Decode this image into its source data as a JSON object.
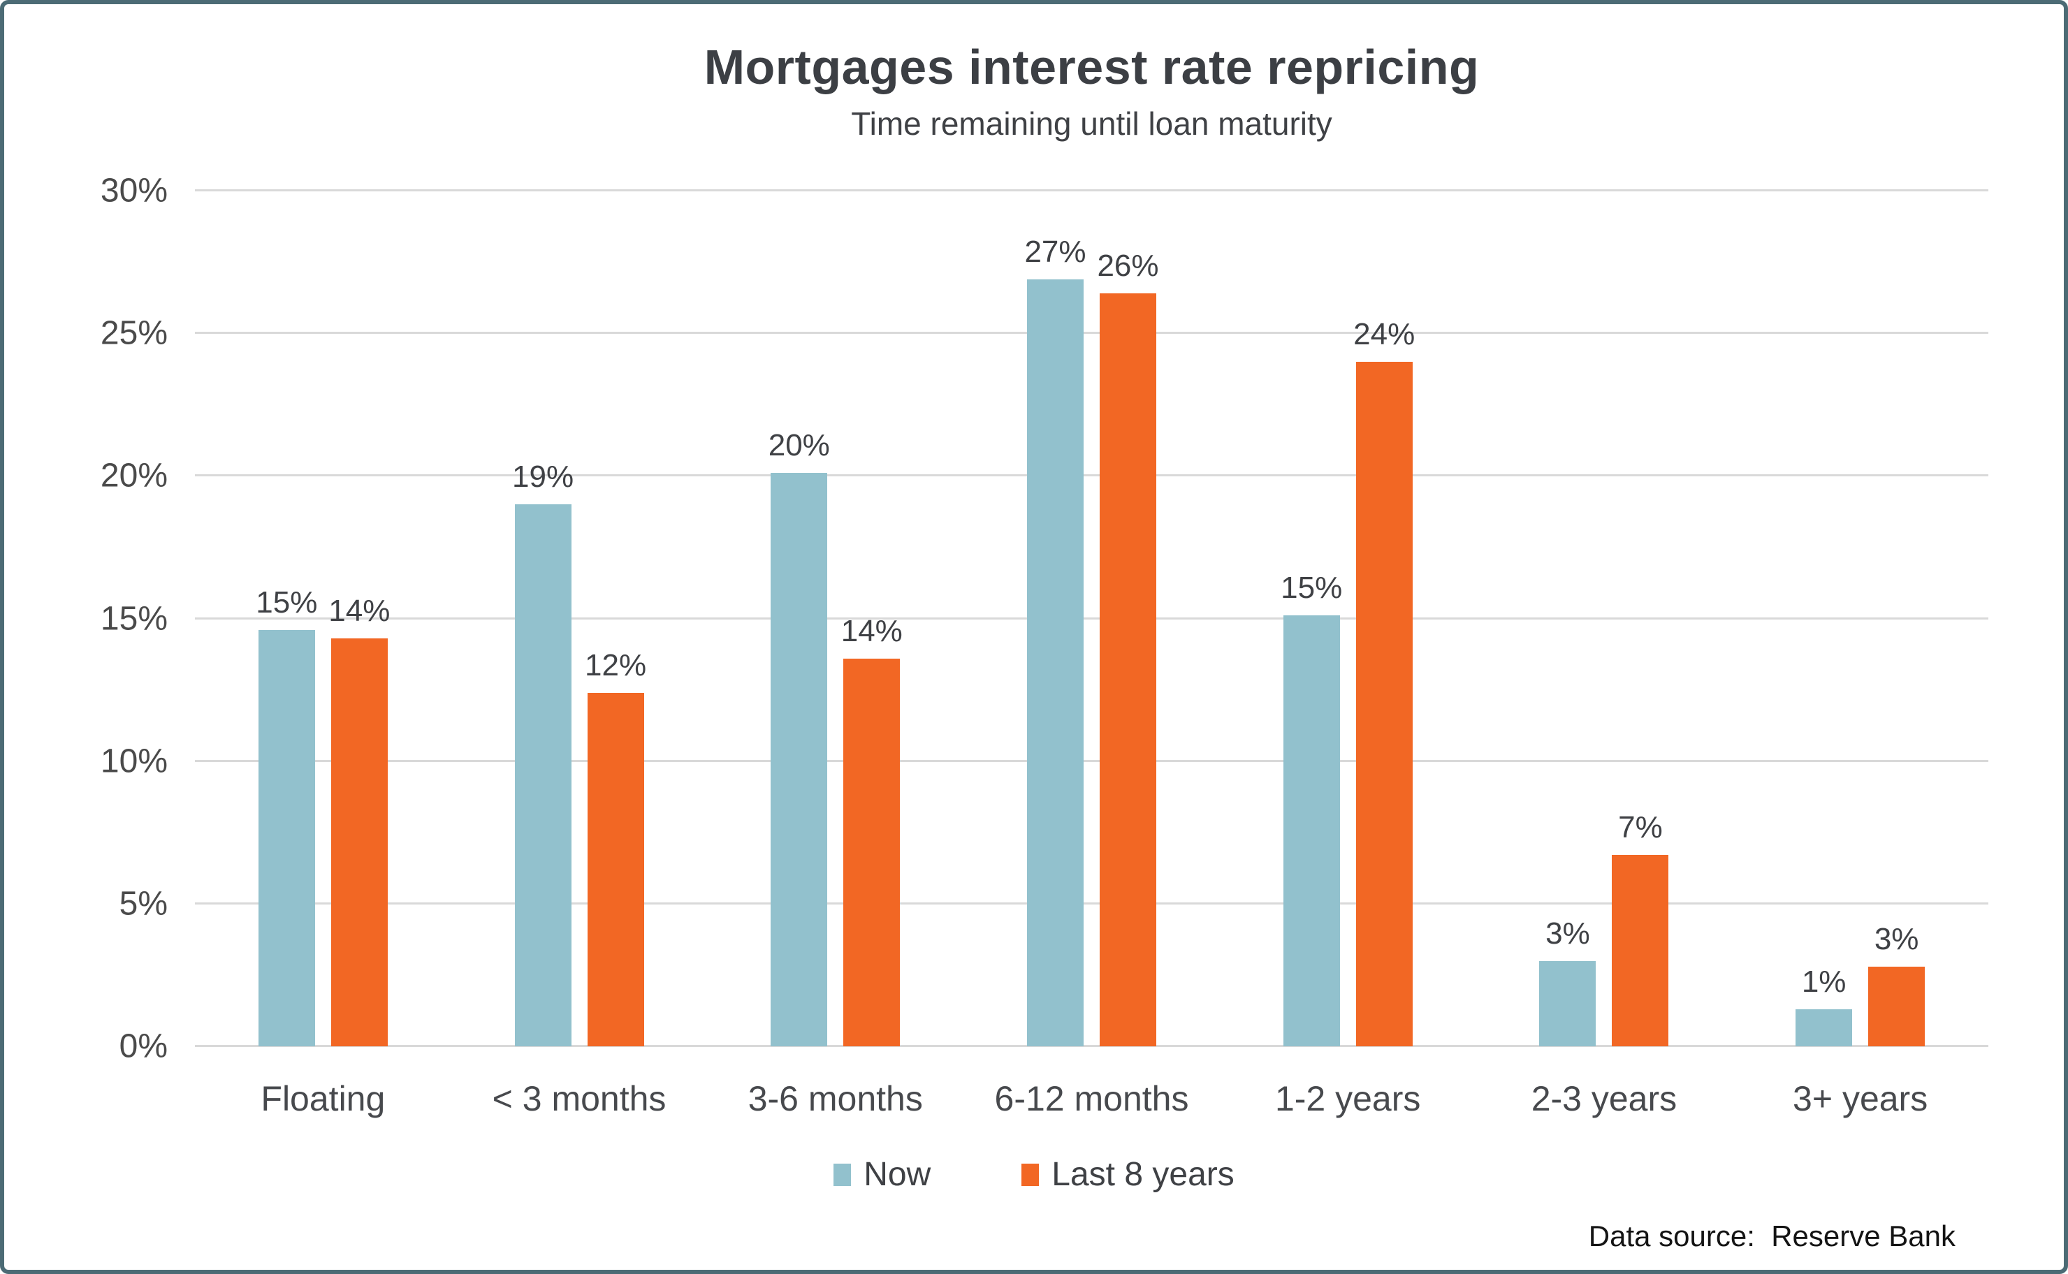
{
  "frame": {
    "border_color": "#4C6B75",
    "background": "#FFFFFF"
  },
  "header": {
    "title": "Mortgages interest rate repricing",
    "subtitle": "Time remaining until loan maturity"
  },
  "chart_data": {
    "type": "bar",
    "title": "Mortgages interest rate repricing",
    "subtitle": "Time remaining until loan maturity",
    "categories": [
      "Floating",
      "< 3 months",
      "3-6 months",
      "6-12 months",
      "1-2 years",
      "2-3 years",
      "3+ years"
    ],
    "series": [
      {
        "name": "Now",
        "color": "#92C1CD",
        "values": [
          15,
          19,
          20,
          27,
          15,
          3,
          1
        ],
        "values_precise": [
          14.6,
          19.0,
          20.1,
          26.9,
          15.1,
          3.0,
          1.3
        ],
        "labels": [
          "15%",
          "19%",
          "20%",
          "27%",
          "15%",
          "3%",
          "1%"
        ]
      },
      {
        "name": "Last 8 years",
        "color": "#F26724",
        "values": [
          14,
          12,
          14,
          26,
          24,
          7,
          3
        ],
        "values_precise": [
          14.3,
          12.4,
          13.6,
          26.4,
          24.0,
          6.7,
          2.8
        ],
        "labels": [
          "14%",
          "12%",
          "14%",
          "26%",
          "24%",
          "7%",
          "3%"
        ]
      }
    ],
    "y_axis": {
      "min": 0,
      "max": 30,
      "step": 5,
      "tick_labels": [
        "0%",
        "5%",
        "10%",
        "15%",
        "20%",
        "25%",
        "30%"
      ]
    },
    "xlabel": "",
    "ylabel": "",
    "grid": true,
    "legend": {
      "position": "bottom",
      "entries": [
        "Now",
        "Last 8 years"
      ]
    },
    "gridline_color": "#D9D9D9",
    "text_color": "#3F4145"
  },
  "footer": {
    "source_label": "Data source:  Reserve Bank"
  }
}
